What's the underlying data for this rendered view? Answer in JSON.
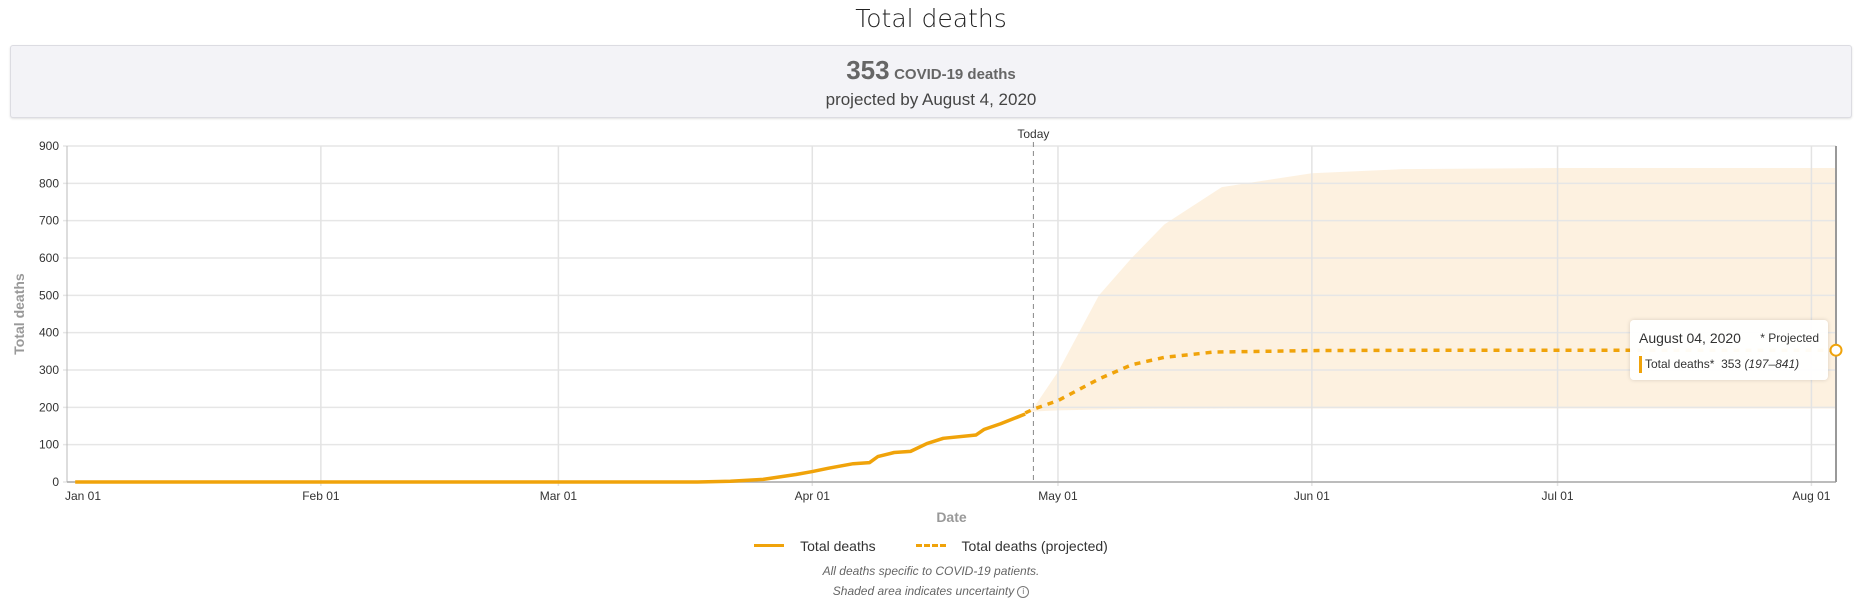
{
  "title": "Total deaths",
  "summary": {
    "value": "353",
    "unit": "COVID-19 deaths",
    "subtitle": "projected by August 4, 2020"
  },
  "today_label": "Today",
  "tooltip": {
    "date": "August 04, 2020",
    "projected_note": "* Projected",
    "series_label": "Total deaths*",
    "value": "353",
    "range": "(197–841)"
  },
  "legend": [
    {
      "label": "Total deaths",
      "style": "solid"
    },
    {
      "label": "Total deaths (projected)",
      "style": "dashed"
    }
  ],
  "footnotes": {
    "line1": "All deaths specific to COVID-19 patients.",
    "line2": "Shaded area indicates uncertainty",
    "info_icon": "info-icon"
  },
  "colors": {
    "line": "#f0a30a",
    "band": "#fdeedb",
    "summary_bg": "#f3f3f7"
  },
  "chart_data": {
    "type": "line",
    "xlabel": "Date",
    "ylabel": "Total deaths",
    "ylim": [
      0,
      900
    ],
    "xlim": [
      "2020-01-01",
      "2020-08-04"
    ],
    "yticks": [
      0,
      100,
      200,
      300,
      400,
      500,
      600,
      700,
      800,
      900
    ],
    "xticks": [
      {
        "date": "2020-01-01",
        "label": "Jan 01"
      },
      {
        "date": "2020-02-01",
        "label": "Feb 01"
      },
      {
        "date": "2020-03-01",
        "label": "Mar 01"
      },
      {
        "date": "2020-04-01",
        "label": "Apr 01"
      },
      {
        "date": "2020-05-01",
        "label": "May 01"
      },
      {
        "date": "2020-06-01",
        "label": "Jun 01"
      },
      {
        "date": "2020-07-01",
        "label": "Jul 01"
      },
      {
        "date": "2020-08-01",
        "label": "Aug 01"
      }
    ],
    "grid": true,
    "today": "2020-04-28",
    "series": [
      {
        "name": "Total deaths",
        "style": "solid",
        "points": [
          [
            "2020-01-02",
            0
          ],
          [
            "2020-03-18",
            0
          ],
          [
            "2020-03-22",
            2
          ],
          [
            "2020-03-26",
            7
          ],
          [
            "2020-03-30",
            20
          ],
          [
            "2020-04-01",
            28
          ],
          [
            "2020-04-03",
            37
          ],
          [
            "2020-04-06",
            49
          ],
          [
            "2020-04-08",
            52
          ],
          [
            "2020-04-09",
            68
          ],
          [
            "2020-04-11",
            79
          ],
          [
            "2020-04-13",
            82
          ],
          [
            "2020-04-15",
            103
          ],
          [
            "2020-04-17",
            117
          ],
          [
            "2020-04-21",
            126
          ],
          [
            "2020-04-22",
            141
          ],
          [
            "2020-04-24",
            156
          ],
          [
            "2020-04-27",
            182
          ]
        ]
      },
      {
        "name": "Total deaths (projected)",
        "style": "dashed",
        "points": [
          [
            "2020-04-27",
            185
          ],
          [
            "2020-04-28",
            195
          ],
          [
            "2020-05-01",
            218
          ],
          [
            "2020-05-06",
            276
          ],
          [
            "2020-05-10",
            314
          ],
          [
            "2020-05-14",
            334
          ],
          [
            "2020-05-20",
            348
          ],
          [
            "2020-06-01",
            352
          ],
          [
            "2020-06-15",
            353
          ],
          [
            "2020-08-04",
            353
          ]
        ]
      }
    ],
    "uncertainty": {
      "upper": [
        [
          "2020-04-27",
          185
        ],
        [
          "2020-04-28",
          198
        ],
        [
          "2020-05-01",
          295
        ],
        [
          "2020-05-06",
          500
        ],
        [
          "2020-05-10",
          600
        ],
        [
          "2020-05-14",
          690
        ],
        [
          "2020-05-21",
          790
        ],
        [
          "2020-06-01",
          827
        ],
        [
          "2020-06-12",
          838
        ],
        [
          "2020-07-01",
          841
        ],
        [
          "2020-08-04",
          841
        ]
      ],
      "lower": [
        [
          "2020-04-27",
          185
        ],
        [
          "2020-04-28",
          189
        ],
        [
          "2020-05-01",
          192
        ],
        [
          "2020-05-10",
          196
        ],
        [
          "2020-06-01",
          197
        ],
        [
          "2020-08-04",
          197
        ]
      ]
    }
  }
}
